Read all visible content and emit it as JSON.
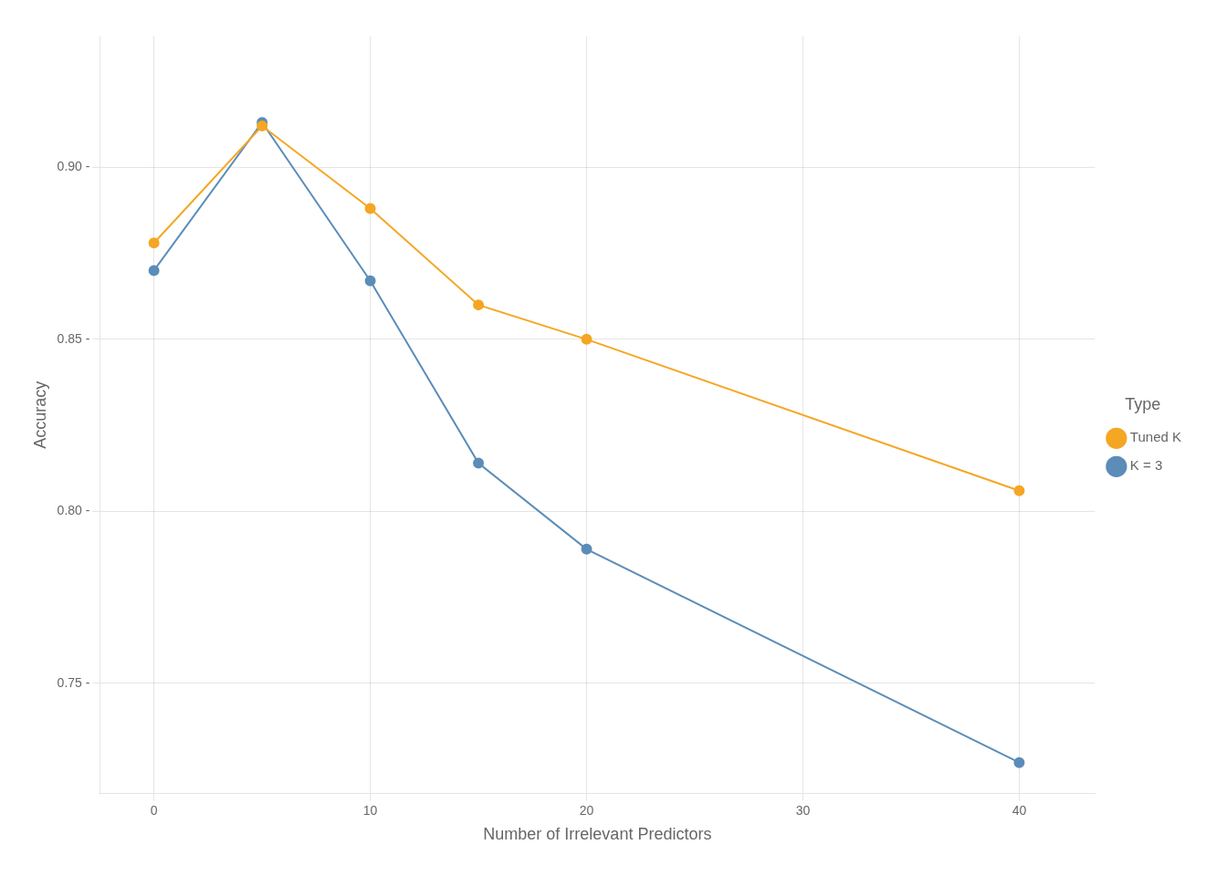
{
  "chart_data": {
    "type": "line",
    "xlabel": "Number of Irrelevant Predictors",
    "ylabel": "Accuracy",
    "legend_title": "Type",
    "x": [
      0,
      5,
      10,
      15,
      20,
      40
    ],
    "series": [
      {
        "name": "Tuned K",
        "color": "#F5A623",
        "marker": "circle",
        "values": [
          0.878,
          0.912,
          0.888,
          0.86,
          0.85,
          0.806
        ]
      },
      {
        "name": "K = 3",
        "color": "#5B8DB8",
        "marker": "circle",
        "values": [
          0.87,
          0.913,
          0.867,
          0.814,
          0.789,
          0.727
        ]
      }
    ],
    "xlim": [
      -2.5,
      43.5
    ],
    "ylim": [
      0.718,
      0.938
    ],
    "xticks": [
      0,
      10,
      20,
      30,
      40
    ],
    "yticks": [
      {
        "value": 0.75,
        "label": "0.75 -"
      },
      {
        "value": 0.8,
        "label": "0.80 -"
      },
      {
        "value": 0.85,
        "label": "0.85 -"
      },
      {
        "value": 0.9,
        "label": "0.90 -"
      }
    ],
    "grid": true,
    "legend": "right"
  }
}
